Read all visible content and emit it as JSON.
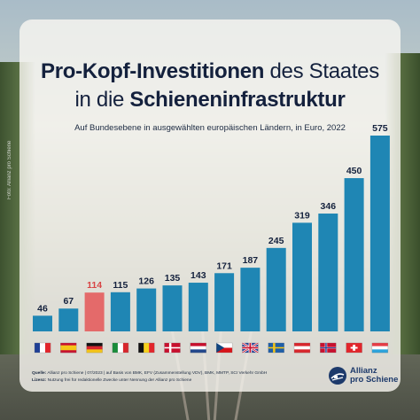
{
  "header": {
    "title_line1_bold": "Pro-Kopf-Investitionen",
    "title_line1_normal": "des Staates",
    "title_line2_normal": "in die",
    "title_line2_bold": "Schieneninfrastruktur",
    "subtitle": "Auf Bundesebene in ausgewählten europäischen Ländern, in Euro, 2022"
  },
  "photo_credit": "Foto: Allianz pro Schiene",
  "footer": {
    "source_label": "Quelle:",
    "source_text": "Allianz pro Schiene | 07/2023 | auf Basis von BMK, EFV (Zusammenstellung VDV), BMK, MMTP, SCI Verkehr GmbH",
    "license_label": "Lizenz:",
    "license_text": "Nutzung frei für redaktionelle Zwecke unter Nennung der Allianz pro Schiene"
  },
  "logo": {
    "line1": "Allianz",
    "line2": "pro Schiene"
  },
  "colors": {
    "bar": "#1f86b4",
    "highlight": "#e46a6a",
    "label": "#14213d",
    "highlight_label": "#d84545"
  },
  "chart_data": {
    "type": "bar",
    "title": "Pro-Kopf-Investitionen des Staates in die Schieneninfrastruktur",
    "subtitle": "Auf Bundesebene in ausgewählten europäischen Ländern, in Euro, 2022",
    "categories": [
      "France",
      "Spain",
      "Germany",
      "Italy",
      "Belgium",
      "Denmark",
      "Netherlands",
      "Czech Republic",
      "United Kingdom",
      "Sweden",
      "Austria",
      "Norway",
      "Switzerland",
      "Luxembourg"
    ],
    "flags": [
      "fr",
      "es",
      "de",
      "it",
      "be",
      "dk",
      "nl",
      "cz",
      "gb",
      "se",
      "at",
      "no",
      "ch",
      "lu"
    ],
    "values": [
      46,
      67,
      114,
      115,
      126,
      135,
      143,
      171,
      187,
      245,
      319,
      346,
      450,
      575
    ],
    "highlight_index": 2,
    "ylim": [
      0,
      575
    ],
    "grid": false,
    "legend": "none"
  }
}
